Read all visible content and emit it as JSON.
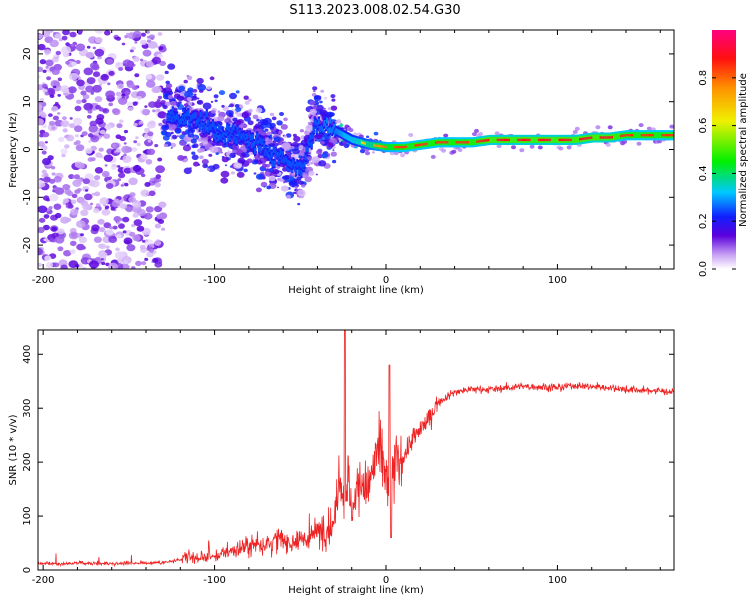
{
  "title": "S113.2023.008.02.54.G30",
  "colors": {
    "snr_line": "#ee2222",
    "axis": "#000000",
    "spectrum_low": "#ead4fb",
    "spectrum_mid": "#6a00e0",
    "spectrum_band": "#00e060",
    "spectrum_core": "#ee2020"
  },
  "chart_data": [
    {
      "type": "heatmap",
      "title": "",
      "xlabel": "Height of straight line (km)",
      "ylabel": "Frequency (Hz)",
      "xlim": [
        -203,
        168
      ],
      "ylim": [
        -25,
        25
      ],
      "x_ticks": [
        -200,
        -100,
        0,
        100
      ],
      "y_ticks": [
        -20,
        -10,
        0,
        10,
        20
      ],
      "colorbar": {
        "label": "Normalized spectral amplitude",
        "range": [
          0,
          1
        ],
        "ticks": [
          "0.0",
          "0.2",
          "0.4",
          "0.6",
          "0.8"
        ],
        "colormap": "rainbow (violet → blue → cyan → green → yellow → red → magenta)"
      },
      "frequency_track": {
        "x": [
          -125,
          -110,
          -100,
          -90,
          -80,
          -70,
          -60,
          -50,
          -42,
          -35,
          -30,
          -20,
          -10,
          0,
          10,
          20,
          30,
          50,
          60,
          70,
          80,
          90,
          100,
          110,
          120,
          130,
          140,
          150,
          168
        ],
        "freq": [
          7,
          6,
          4,
          3,
          2,
          0,
          -2,
          -4,
          5,
          5,
          4,
          2,
          1,
          0.5,
          0.5,
          1,
          1.5,
          1.5,
          2,
          2,
          2,
          2,
          2,
          2,
          2.5,
          2.5,
          3,
          3,
          3
        ],
        "amplitude": [
          0.25,
          0.25,
          0.25,
          0.25,
          0.3,
          0.3,
          0.3,
          0.35,
          0.45,
          0.5,
          0.5,
          0.6,
          0.7,
          0.8,
          0.85,
          0.85,
          0.85,
          0.85,
          0.9,
          0.9,
          0.9,
          0.9,
          0.9,
          0.9,
          0.9,
          0.9,
          0.85,
          0.85,
          0.85
        ]
      }
    },
    {
      "type": "line",
      "title": "",
      "xlabel": "Height of straight line (km)",
      "ylabel": "SNR (10 * v/v)",
      "xlim": [
        -203,
        168
      ],
      "ylim": [
        0,
        445
      ],
      "x_ticks": [
        -200,
        -100,
        0,
        100
      ],
      "y_ticks": [
        0,
        100,
        200,
        300,
        400
      ],
      "series": [
        {
          "x": [
            -203,
            -190,
            -180,
            -170,
            -160,
            -150,
            -140,
            -130,
            -120,
            -115,
            -110,
            -100,
            -90,
            -80,
            -70,
            -60,
            -50,
            -45,
            -40,
            -35,
            -30,
            -27,
            -25,
            -23,
            -20,
            -15,
            -10,
            -5,
            -2,
            0,
            2,
            5,
            10,
            15,
            20,
            25,
            30,
            40,
            50,
            60,
            70,
            80,
            90,
            100,
            110,
            120,
            130,
            140,
            150,
            160,
            168
          ],
          "y": [
            12,
            12,
            13,
            12,
            12,
            13,
            13,
            14,
            18,
            25,
            22,
            25,
            35,
            45,
            50,
            55,
            50,
            60,
            70,
            80,
            90,
            200,
            130,
            180,
            110,
            170,
            150,
            220,
            200,
            180,
            120,
            190,
            210,
            240,
            260,
            280,
            310,
            330,
            335,
            335,
            338,
            340,
            340,
            338,
            342,
            340,
            338,
            335,
            333,
            332,
            330
          ]
        }
      ]
    }
  ]
}
